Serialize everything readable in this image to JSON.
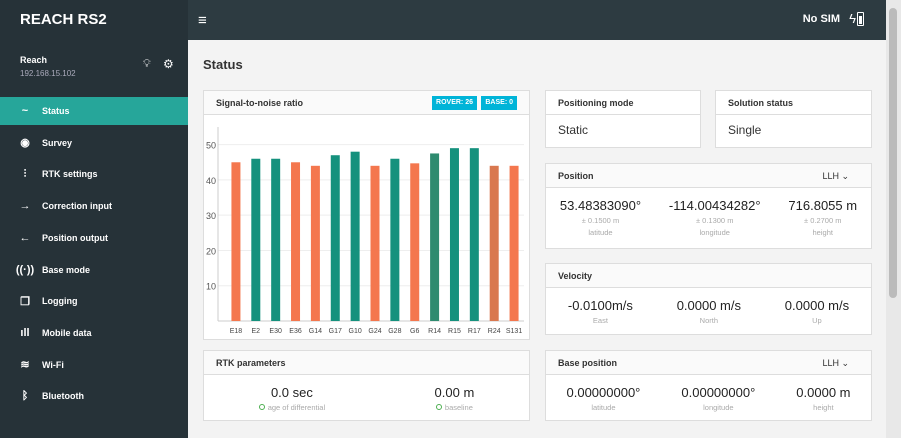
{
  "header": {
    "brand": "REACH RS2",
    "menu_icon": "hamburger-icon",
    "sim": "No SIM"
  },
  "device": {
    "name": "Reach",
    "ip": "192.168.15.102"
  },
  "nav": [
    {
      "label": "Status",
      "icon": "~"
    },
    {
      "label": "Survey",
      "icon": "◉"
    },
    {
      "label": "RTK settings",
      "icon": "⫶"
    },
    {
      "label": "Correction input",
      "icon": "→"
    },
    {
      "label": "Position output",
      "icon": "←"
    },
    {
      "label": "Base mode",
      "icon": "((·))"
    },
    {
      "label": "Logging",
      "icon": "❐"
    },
    {
      "label": "Mobile data",
      "icon": "ıll"
    },
    {
      "label": "Wi-Fi",
      "icon": "≋"
    },
    {
      "label": "Bluetooth",
      "icon": "ᛒ"
    }
  ],
  "page_title": "Status",
  "snr": {
    "title": "Signal-to-noise ratio",
    "rover": "ROVER: 26",
    "base": "BASE: 0"
  },
  "chart_data": {
    "type": "bar",
    "categories": [
      "E18",
      "E2",
      "E30",
      "E36",
      "G14",
      "G17",
      "G10",
      "G24",
      "G28",
      "G6",
      "R14",
      "R15",
      "R17",
      "R24",
      "S131"
    ],
    "values": [
      45,
      46,
      46,
      45,
      44,
      47,
      48,
      44,
      46,
      44.7,
      47.5,
      49,
      49,
      44,
      44
    ],
    "colors": [
      "#f4774e",
      "#15917d",
      "#15917d",
      "#f4774e",
      "#f4774e",
      "#15917d",
      "#15917d",
      "#f4774e",
      "#15917d",
      "#f4774e",
      "#2e8b6f",
      "#15917d",
      "#15917d",
      "#d9784f",
      "#f4774e"
    ],
    "yticks": [
      10,
      20,
      30,
      40,
      50
    ],
    "ylim": [
      0,
      55
    ],
    "grid": true
  },
  "positioning": {
    "title": "Positioning mode",
    "value": "Static"
  },
  "solution": {
    "title": "Solution status",
    "value": "Single"
  },
  "position": {
    "title": "Position",
    "format": "LLH",
    "cols": [
      {
        "v": "53.48383090°",
        "acc": "± 0.1500 m",
        "l": "latitude"
      },
      {
        "v": "-114.00434282°",
        "acc": "± 0.1300 m",
        "l": "longitude"
      },
      {
        "v": "716.8055 m",
        "acc": "± 0.2700 m",
        "l": "height"
      }
    ]
  },
  "velocity": {
    "title": "Velocity",
    "cols": [
      {
        "v": "-0.0100m/s",
        "l": "East"
      },
      {
        "v": "0.0000 m/s",
        "l": "North"
      },
      {
        "v": "0.0000 m/s",
        "l": "Up"
      }
    ]
  },
  "rtk": {
    "title": "RTK parameters",
    "cols": [
      {
        "v": "0.0 sec",
        "l": "age of differential"
      },
      {
        "v": "0.00 m",
        "l": "baseline"
      }
    ]
  },
  "base": {
    "title": "Base position",
    "format": "LLH",
    "cols": [
      {
        "v": "0.00000000°",
        "l": "latitude"
      },
      {
        "v": "0.00000000°",
        "l": "longitude"
      },
      {
        "v": "0.0000 m",
        "l": "height"
      }
    ]
  }
}
